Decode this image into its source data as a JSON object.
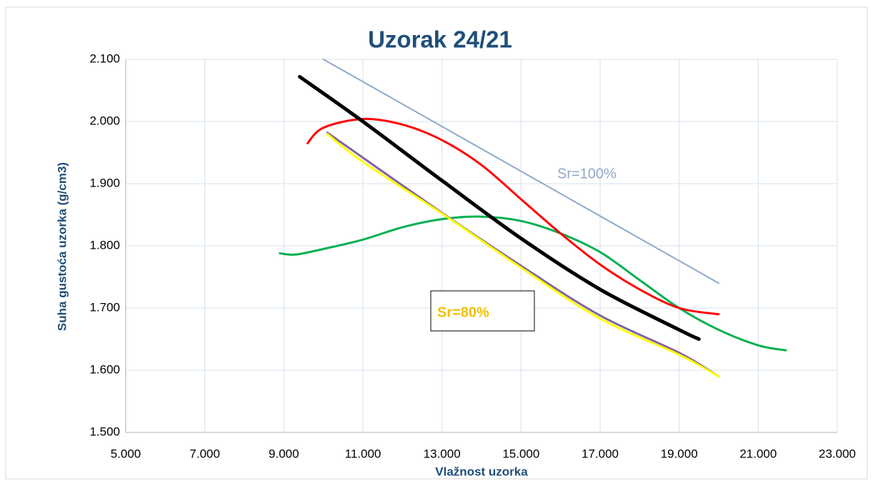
{
  "chart_data": {
    "type": "line",
    "title": "Uzorak 24/21",
    "x_label": "Vlažnost uzorka",
    "y_label": "Suha gustoća uzorka (g/cm3)",
    "xlim": [
      5,
      23
    ],
    "ylim": [
      1.5,
      2.1
    ],
    "xticks": [
      {
        "value": 5,
        "label": "5.000"
      },
      {
        "value": 7,
        "label": "7.000"
      },
      {
        "value": 9,
        "label": "9.000"
      },
      {
        "value": 11,
        "label": "11.000"
      },
      {
        "value": 13,
        "label": "13.000"
      },
      {
        "value": 15,
        "label": "15.000"
      },
      {
        "value": 17,
        "label": "17.000"
      },
      {
        "value": 19,
        "label": "19.000"
      },
      {
        "value": 21,
        "label": "21.000"
      },
      {
        "value": 23,
        "label": "23.000"
      }
    ],
    "yticks": [
      {
        "value": 1.5,
        "label": "1.500"
      },
      {
        "value": 1.6,
        "label": "1.600"
      },
      {
        "value": 1.7,
        "label": "1.700"
      },
      {
        "value": 1.8,
        "label": "1.800"
      },
      {
        "value": 1.9,
        "label": "1.900"
      },
      {
        "value": 2.0,
        "label": "2.000"
      },
      {
        "value": 2.1,
        "label": "2.100"
      }
    ],
    "grid": true,
    "series": [
      {
        "name": "Sr=100%",
        "color": "#8ea9c8",
        "x": [
          10,
          20
        ],
        "values": [
          2.1,
          1.74
        ]
      },
      {
        "color": "#00b050",
        "x": [
          8.9,
          9.3,
          10,
          11,
          12,
          13,
          14,
          15,
          16,
          17,
          18,
          19,
          20,
          21,
          21.7
        ],
        "values": [
          1.788,
          1.786,
          1.795,
          1.81,
          1.83,
          1.843,
          1.847,
          1.84,
          1.82,
          1.79,
          1.745,
          1.7,
          1.665,
          1.64,
          1.632
        ]
      },
      {
        "color": "#ff0000",
        "x": [
          9.6,
          10,
          11,
          12,
          13,
          14,
          15,
          16,
          17,
          18,
          19,
          20
        ],
        "values": [
          1.965,
          1.99,
          2.004,
          1.995,
          1.97,
          1.93,
          1.875,
          1.82,
          1.77,
          1.73,
          1.7,
          1.69
        ]
      },
      {
        "color": "#8064a2",
        "x": [
          10.1,
          13,
          15,
          17,
          19,
          20
        ],
        "values": [
          1.982,
          1.853,
          1.768,
          1.688,
          1.628,
          1.59
        ]
      },
      {
        "name": "Sr=80%",
        "color": "#ffff00",
        "x": [
          10.1,
          11,
          13,
          15,
          17,
          19,
          20
        ],
        "values": [
          1.98,
          1.935,
          1.852,
          1.765,
          1.683,
          1.625,
          1.59
        ]
      },
      {
        "color": "#000000",
        "x": [
          9.4,
          11,
          13,
          15,
          17,
          19,
          19.5
        ],
        "values": [
          2.072,
          2.0,
          1.905,
          1.812,
          1.73,
          1.665,
          1.65
        ]
      }
    ]
  }
}
